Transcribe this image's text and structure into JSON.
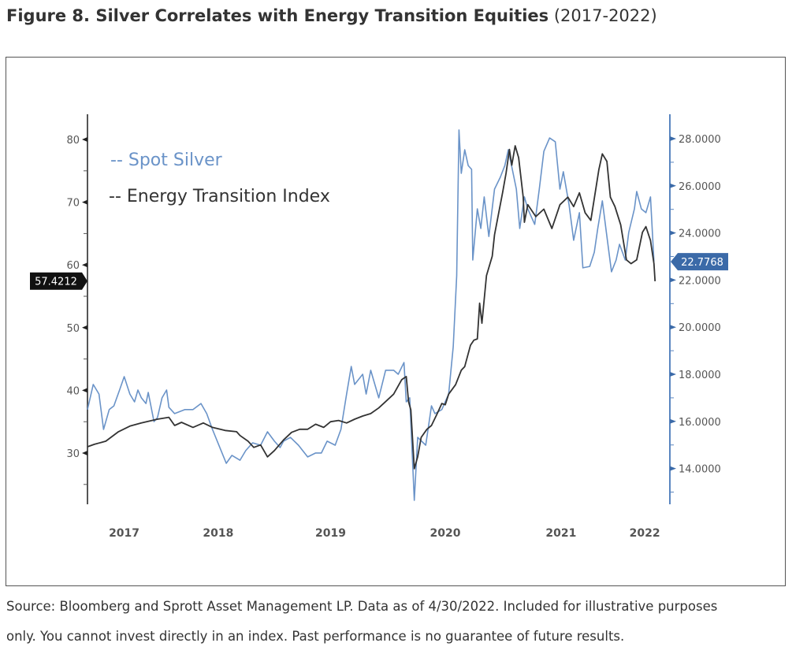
{
  "figure": {
    "title_bold": "Figure 8. Silver Correlates with Energy Transition Equities",
    "title_sub": "(2017-2022)",
    "source_line1": "Source: Bloomberg and Sprott Asset Management LP. Data as of 4/30/2022. Included for illustrative purposes",
    "source_line2": "only. You cannot invest directly in an index. Past performance is no guarantee of future results."
  },
  "chart_data": {
    "type": "line",
    "title": "Silver Correlates with Energy Transition Equities (2017-2022)",
    "x_tick_labels": [
      "2017",
      "2018",
      "2019",
      "2020",
      "2021",
      "2022"
    ],
    "x_tick_positions_years": [
      2017.67,
      2018.49,
      2019.47,
      2020.47,
      2021.48,
      2022.21
    ],
    "xlim": [
      2017.35,
      2022.33
    ],
    "left_axis": {
      "ticks": [
        "30",
        "40",
        "50",
        "60",
        "70",
        "80"
      ],
      "values": [
        30,
        40,
        50,
        60,
        70,
        80
      ],
      "ylim": [
        22.5,
        84.5
      ],
      "last_value_label": "57.4212"
    },
    "right_axis": {
      "ticks": [
        "14.0000",
        "16.0000",
        "18.0000",
        "20.0000",
        "22.0000",
        "24.0000",
        "26.0000",
        "28.0000"
      ],
      "values": [
        14,
        16,
        18,
        20,
        22,
        24,
        26,
        28
      ],
      "ylim": [
        12.5,
        28.9
      ],
      "last_value_label": "22.7768"
    },
    "legend": [
      {
        "label": "-- Spot Silver",
        "color": "#6a93c8"
      },
      {
        "label": "-- Energy Transition Index",
        "color": "#333333"
      }
    ],
    "legend_position": "top-left",
    "series": [
      {
        "name": "Energy Transition Index",
        "axis": "left",
        "color": "#333333",
        "points": [
          [
            2017.35,
            31.0
          ],
          [
            2017.41,
            31.4
          ],
          [
            2017.51,
            31.9
          ],
          [
            2017.62,
            33.4
          ],
          [
            2017.72,
            34.3
          ],
          [
            2017.82,
            34.8
          ],
          [
            2017.96,
            35.4
          ],
          [
            2018.06,
            35.7
          ],
          [
            2018.11,
            34.4
          ],
          [
            2018.17,
            34.9
          ],
          [
            2018.27,
            34.1
          ],
          [
            2018.36,
            34.8
          ],
          [
            2018.44,
            34.1
          ],
          [
            2018.55,
            33.6
          ],
          [
            2018.65,
            33.4
          ],
          [
            2018.68,
            32.8
          ],
          [
            2018.75,
            31.9
          ],
          [
            2018.8,
            30.9
          ],
          [
            2018.86,
            31.3
          ],
          [
            2018.92,
            29.4
          ],
          [
            2018.98,
            30.4
          ],
          [
            2019.06,
            32.1
          ],
          [
            2019.13,
            33.3
          ],
          [
            2019.2,
            33.8
          ],
          [
            2019.27,
            33.8
          ],
          [
            2019.34,
            34.6
          ],
          [
            2019.41,
            34.1
          ],
          [
            2019.47,
            35.0
          ],
          [
            2019.54,
            35.2
          ],
          [
            2019.61,
            34.8
          ],
          [
            2019.68,
            35.4
          ],
          [
            2019.75,
            35.9
          ],
          [
            2019.82,
            36.3
          ],
          [
            2019.89,
            37.2
          ],
          [
            2019.95,
            38.2
          ],
          [
            2020.02,
            39.4
          ],
          [
            2020.09,
            41.7
          ],
          [
            2020.13,
            42.2
          ],
          [
            2020.15,
            38.2
          ],
          [
            2020.17,
            36.9
          ],
          [
            2020.2,
            27.5
          ],
          [
            2020.23,
            29.4
          ],
          [
            2020.26,
            32.5
          ],
          [
            2020.31,
            33.8
          ],
          [
            2020.35,
            34.4
          ],
          [
            2020.4,
            36.3
          ],
          [
            2020.44,
            37.9
          ],
          [
            2020.47,
            37.7
          ],
          [
            2020.5,
            39.4
          ],
          [
            2020.56,
            40.9
          ],
          [
            2020.61,
            43.2
          ],
          [
            2020.64,
            43.8
          ],
          [
            2020.69,
            47.2
          ],
          [
            2020.72,
            48.0
          ],
          [
            2020.75,
            48.2
          ],
          [
            2020.77,
            53.9
          ],
          [
            2020.79,
            50.7
          ],
          [
            2020.83,
            58.3
          ],
          [
            2020.88,
            61.4
          ],
          [
            2020.9,
            64.8
          ],
          [
            2020.93,
            67.7
          ],
          [
            2020.97,
            71.5
          ],
          [
            2021.0,
            74.6
          ],
          [
            2021.03,
            78.4
          ],
          [
            2021.05,
            75.9
          ],
          [
            2021.08,
            79.0
          ],
          [
            2021.11,
            77.1
          ],
          [
            2021.15,
            70.8
          ],
          [
            2021.16,
            66.8
          ],
          [
            2021.19,
            69.6
          ],
          [
            2021.26,
            67.7
          ],
          [
            2021.33,
            68.9
          ],
          [
            2021.4,
            65.8
          ],
          [
            2021.47,
            69.6
          ],
          [
            2021.54,
            70.8
          ],
          [
            2021.59,
            69.3
          ],
          [
            2021.64,
            71.5
          ],
          [
            2021.69,
            68.3
          ],
          [
            2021.74,
            67.1
          ],
          [
            2021.81,
            75.2
          ],
          [
            2021.84,
            77.7
          ],
          [
            2021.88,
            76.5
          ],
          [
            2021.91,
            70.8
          ],
          [
            2021.95,
            69.3
          ],
          [
            2022.0,
            66.4
          ],
          [
            2022.05,
            60.8
          ],
          [
            2022.09,
            60.2
          ],
          [
            2022.14,
            60.8
          ],
          [
            2022.19,
            65.2
          ],
          [
            2022.22,
            66.1
          ],
          [
            2022.26,
            63.9
          ],
          [
            2022.29,
            60.2
          ],
          [
            2022.3,
            57.4
          ]
        ]
      },
      {
        "name": "Spot Silver",
        "axis": "right",
        "color": "#6a93c8",
        "points": [
          [
            2017.35,
            16.5
          ],
          [
            2017.4,
            17.57
          ],
          [
            2017.45,
            17.16
          ],
          [
            2017.49,
            15.66
          ],
          [
            2017.54,
            16.5
          ],
          [
            2017.58,
            16.66
          ],
          [
            2017.63,
            17.33
          ],
          [
            2017.67,
            17.9
          ],
          [
            2017.72,
            17.16
          ],
          [
            2017.76,
            16.83
          ],
          [
            2017.79,
            17.33
          ],
          [
            2017.82,
            17.0
          ],
          [
            2017.86,
            16.76
          ],
          [
            2017.88,
            17.23
          ],
          [
            2017.93,
            15.99
          ],
          [
            2017.96,
            16.16
          ],
          [
            2018.0,
            17.0
          ],
          [
            2018.04,
            17.33
          ],
          [
            2018.06,
            16.6
          ],
          [
            2018.11,
            16.33
          ],
          [
            2018.2,
            16.5
          ],
          [
            2018.27,
            16.5
          ],
          [
            2018.34,
            16.76
          ],
          [
            2018.39,
            16.33
          ],
          [
            2018.44,
            15.66
          ],
          [
            2018.51,
            14.82
          ],
          [
            2018.56,
            14.22
          ],
          [
            2018.61,
            14.56
          ],
          [
            2018.68,
            14.35
          ],
          [
            2018.73,
            14.76
          ],
          [
            2018.79,
            15.09
          ],
          [
            2018.86,
            14.99
          ],
          [
            2018.92,
            15.56
          ],
          [
            2018.98,
            15.16
          ],
          [
            2019.03,
            14.89
          ],
          [
            2019.06,
            15.16
          ],
          [
            2019.12,
            15.32
          ],
          [
            2019.19,
            14.99
          ],
          [
            2019.27,
            14.49
          ],
          [
            2019.34,
            14.66
          ],
          [
            2019.39,
            14.66
          ],
          [
            2019.44,
            15.16
          ],
          [
            2019.51,
            14.99
          ],
          [
            2019.56,
            15.66
          ],
          [
            2019.61,
            17.16
          ],
          [
            2019.65,
            18.33
          ],
          [
            2019.68,
            17.57
          ],
          [
            2019.75,
            18.0
          ],
          [
            2019.78,
            17.16
          ],
          [
            2019.82,
            18.17
          ],
          [
            2019.89,
            17.0
          ],
          [
            2019.95,
            18.17
          ],
          [
            2020.02,
            18.17
          ],
          [
            2020.06,
            18.0
          ],
          [
            2020.11,
            18.5
          ],
          [
            2020.13,
            16.83
          ],
          [
            2020.16,
            17.0
          ],
          [
            2020.2,
            12.65
          ],
          [
            2020.23,
            15.32
          ],
          [
            2020.3,
            14.99
          ],
          [
            2020.35,
            16.66
          ],
          [
            2020.38,
            16.33
          ],
          [
            2020.44,
            16.5
          ],
          [
            2020.5,
            17.16
          ],
          [
            2020.54,
            19.17
          ],
          [
            2020.57,
            22.18
          ],
          [
            2020.59,
            28.37
          ],
          [
            2020.61,
            26.53
          ],
          [
            2020.64,
            27.53
          ],
          [
            2020.67,
            26.86
          ],
          [
            2020.7,
            26.7
          ],
          [
            2020.71,
            22.85
          ],
          [
            2020.75,
            25.02
          ],
          [
            2020.78,
            24.19
          ],
          [
            2020.81,
            25.53
          ],
          [
            2020.85,
            23.85
          ],
          [
            2020.9,
            25.86
          ],
          [
            2020.95,
            26.36
          ],
          [
            2020.99,
            26.86
          ],
          [
            2021.02,
            27.53
          ],
          [
            2021.09,
            25.86
          ],
          [
            2021.12,
            24.19
          ],
          [
            2021.16,
            25.53
          ],
          [
            2021.19,
            25.02
          ],
          [
            2021.25,
            24.36
          ],
          [
            2021.29,
            25.86
          ],
          [
            2021.33,
            27.46
          ],
          [
            2021.38,
            28.03
          ],
          [
            2021.43,
            27.87
          ],
          [
            2021.47,
            25.86
          ],
          [
            2021.5,
            26.6
          ],
          [
            2021.55,
            25.19
          ],
          [
            2021.59,
            23.69
          ],
          [
            2021.64,
            24.86
          ],
          [
            2021.67,
            22.52
          ],
          [
            2021.73,
            22.58
          ],
          [
            2021.77,
            23.18
          ],
          [
            2021.8,
            24.19
          ],
          [
            2021.84,
            25.36
          ],
          [
            2021.88,
            23.85
          ],
          [
            2021.92,
            22.35
          ],
          [
            2021.96,
            22.85
          ],
          [
            2021.99,
            23.52
          ],
          [
            2022.04,
            22.85
          ],
          [
            2022.07,
            24.02
          ],
          [
            2022.12,
            25.02
          ],
          [
            2022.14,
            25.76
          ],
          [
            2022.18,
            25.02
          ],
          [
            2022.22,
            24.86
          ],
          [
            2022.26,
            25.53
          ],
          [
            2022.29,
            22.78
          ]
        ]
      }
    ]
  }
}
